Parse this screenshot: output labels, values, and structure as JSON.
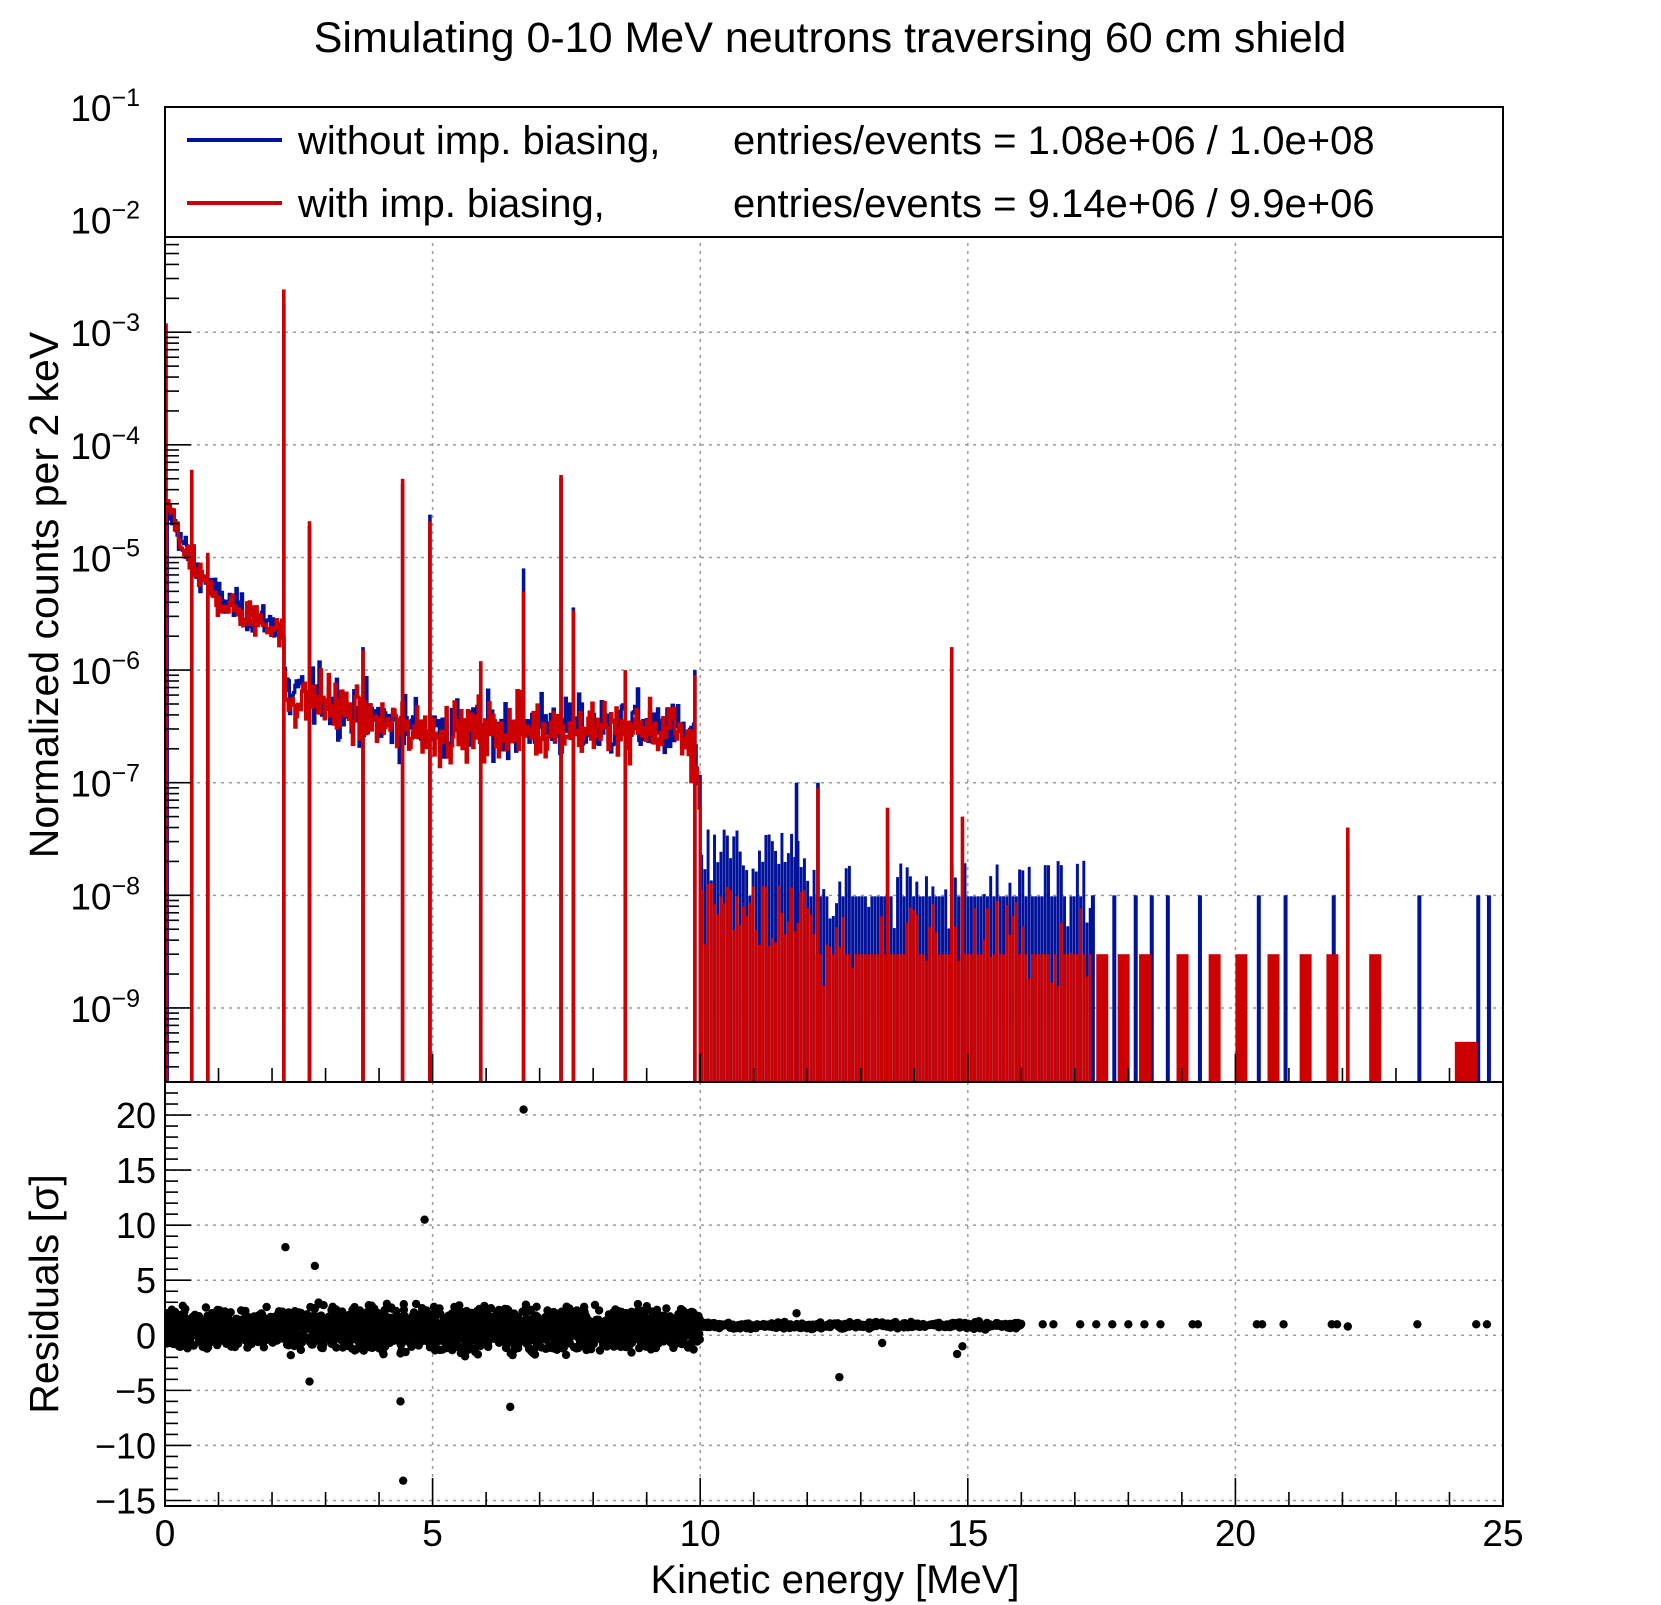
{
  "chart_data": [
    {
      "type": "line",
      "subtype": "step-histogram",
      "title": "Simulating 0-10 MeV neutrons traversing 60 cm shield",
      "xlabel": "Kinetic energy [MeV]",
      "ylabel": "Normalized counts per 2 keV",
      "yscale": "log",
      "xlim": [
        0,
        25
      ],
      "ylim": [
        2.2e-10,
        0.1
      ],
      "grid": true,
      "legend_position": "top",
      "x_tick_labels": [
        "0",
        "5",
        "10",
        "15",
        "20",
        "25"
      ],
      "y_tick_labels": [
        {
          "base": "10",
          "exp": "−1",
          "value": 0.1
        },
        {
          "base": "10",
          "exp": "−2",
          "value": 0.01
        },
        {
          "base": "10",
          "exp": "−3",
          "value": 0.001
        },
        {
          "base": "10",
          "exp": "−4",
          "value": 0.0001
        },
        {
          "base": "10",
          "exp": "−5",
          "value": 1e-05
        },
        {
          "base": "10",
          "exp": "−6",
          "value": 1e-06
        },
        {
          "base": "10",
          "exp": "−7",
          "value": 1e-07
        },
        {
          "base": "10",
          "exp": "−8",
          "value": 1e-08
        },
        {
          "base": "10",
          "exp": "−9",
          "value": 1e-09
        }
      ],
      "series": [
        {
          "name": "without imp. biasing,",
          "stats": "entries/events = 1.08e+06 / 1.0e+08",
          "color": "#00129a",
          "continuum": [
            [
              0.0,
              3e-06
            ],
            [
              0.02,
              2e-05
            ],
            [
              0.1,
              2.6e-05
            ],
            [
              0.2,
              1.9e-05
            ],
            [
              0.35,
              1.3e-05
            ],
            [
              0.5,
              9e-06
            ],
            [
              0.7,
              6.5e-06
            ],
            [
              1.0,
              4.5e-06
            ],
            [
              1.5,
              3.2e-06
            ],
            [
              2.0,
              2.6e-06
            ],
            [
              2.2,
              2.3e-06
            ],
            [
              2.26,
              6e-07
            ],
            [
              3.0,
              5.5e-07
            ],
            [
              3.5,
              4.2e-07
            ],
            [
              4.0,
              3.4e-07
            ],
            [
              5.0,
              3e-07
            ],
            [
              6.0,
              2.9e-07
            ],
            [
              7.0,
              3.3e-07
            ],
            [
              8.0,
              3e-07
            ],
            [
              9.0,
              3.2e-07
            ],
            [
              9.5,
              3e-07
            ],
            [
              9.9,
              2.1e-07
            ],
            [
              10.0,
              8e-08
            ],
            [
              10.3,
              1.6e-08
            ],
            [
              12.0,
              1.1e-08
            ],
            [
              15.0,
              9e-09
            ],
            [
              17.0,
              7e-09
            ]
          ],
          "peaks": [
            [
              0.04,
              2.5e-05
            ],
            [
              0.5,
              5e-05
            ],
            [
              0.8,
              1e-05
            ],
            [
              2.22,
              0.0018
            ],
            [
              2.7,
              1.9e-05
            ],
            [
              3.7,
              1.6e-06
            ],
            [
              4.44,
              4.5e-05
            ],
            [
              4.95,
              2.4e-05
            ],
            [
              5.9,
              1.1e-06
            ],
            [
              6.7,
              8e-06
            ],
            [
              7.4,
              5.1e-05
            ],
            [
              7.63,
              3.6e-06
            ],
            [
              8.6,
              9e-07
            ],
            [
              9.9,
              1e-06
            ],
            [
              11.8,
              1e-07
            ],
            [
              12.2,
              1e-07
            ],
            [
              14.7,
              1.5e-06
            ],
            [
              22.1,
              2.5e-08
            ]
          ],
          "sparse_tail_bins": [
            [
              17.3,
              1e-08
            ],
            [
              17.7,
              1e-08
            ],
            [
              18.1,
              1e-08
            ],
            [
              18.4,
              1e-08
            ],
            [
              18.7,
              1e-08
            ],
            [
              19.3,
              1e-08
            ],
            [
              20.4,
              1e-08
            ],
            [
              20.9,
              1e-08
            ],
            [
              21.8,
              1e-08
            ],
            [
              23.4,
              1e-08
            ],
            [
              24.5,
              1e-08
            ],
            [
              24.7,
              1e-08
            ]
          ]
        },
        {
          "name": "with imp. biasing,",
          "stats": "entries/events = 9.14e+06 / 9.9e+06",
          "color": "#cc0000",
          "continuum": [
            [
              0.0,
              3e-06
            ],
            [
              0.02,
              2.9e-05
            ],
            [
              0.1,
              2.7e-05
            ],
            [
              0.2,
              1.8e-05
            ],
            [
              0.35,
              1.2e-05
            ],
            [
              0.5,
              8.5e-06
            ],
            [
              0.7,
              6e-06
            ],
            [
              1.0,
              4.2e-06
            ],
            [
              1.5,
              3e-06
            ],
            [
              2.0,
              2.5e-06
            ],
            [
              2.2,
              2.2e-06
            ],
            [
              2.26,
              5.5e-07
            ],
            [
              3.0,
              5.2e-07
            ],
            [
              3.5,
              4e-07
            ],
            [
              4.0,
              3.3e-07
            ],
            [
              5.0,
              2.9e-07
            ],
            [
              6.0,
              2.8e-07
            ],
            [
              7.0,
              3.1e-07
            ],
            [
              8.0,
              2.9e-07
            ],
            [
              9.0,
              3e-07
            ],
            [
              9.5,
              2.8e-07
            ],
            [
              9.9,
              2e-07
            ],
            [
              10.0,
              7e-08
            ],
            [
              10.3,
              1.2e-08
            ],
            [
              12.0,
              6e-09
            ],
            [
              15.0,
              4e-09
            ],
            [
              17.0,
              3e-09
            ]
          ],
          "peaks": [
            [
              0.02,
              0.0012
            ],
            [
              0.5,
              6e-05
            ],
            [
              0.8,
              1.1e-05
            ],
            [
              2.22,
              0.0024
            ],
            [
              2.7,
              2.1e-05
            ],
            [
              3.7,
              1.5e-06
            ],
            [
              4.44,
              5e-05
            ],
            [
              4.95,
              2.1e-05
            ],
            [
              5.9,
              1.2e-06
            ],
            [
              6.7,
              5e-06
            ],
            [
              7.4,
              5.4e-05
            ],
            [
              7.63,
              3.4e-06
            ],
            [
              8.6,
              1e-06
            ],
            [
              9.9,
              9e-07
            ],
            [
              12.2,
              9e-08
            ],
            [
              13.5,
              6e-08
            ],
            [
              14.7,
              1.6e-06
            ],
            [
              14.9,
              5e-08
            ],
            [
              22.1,
              4e-08
            ]
          ],
          "sparse_tail_bins": [
            [
              17.4,
              3e-09
            ],
            [
              17.8,
              3e-09
            ],
            [
              18.2,
              3e-09
            ],
            [
              18.9,
              3e-09
            ],
            [
              19.5,
              3e-09
            ],
            [
              20.0,
              3e-09
            ],
            [
              20.6,
              3e-09
            ],
            [
              21.2,
              3e-09
            ],
            [
              21.7,
              3e-09
            ],
            [
              22.5,
              3e-09
            ],
            [
              24.1,
              5e-10
            ],
            [
              24.3,
              5e-10
            ]
          ]
        }
      ]
    },
    {
      "type": "scatter",
      "xlabel": "Kinetic energy [MeV]",
      "ylabel": "Residuals [σ]",
      "xlim": [
        0,
        25
      ],
      "ylim": [
        -15.5,
        23
      ],
      "grid": true,
      "x_tick_labels": [
        "0",
        "5",
        "10",
        "15",
        "20",
        "25"
      ],
      "y_tick_labels": [
        {
          "label": "20",
          "value": 20
        },
        {
          "label": "15",
          "value": 15
        },
        {
          "label": "10",
          "value": 10
        },
        {
          "label": "5",
          "value": 5
        },
        {
          "label": "0",
          "value": 0
        },
        {
          "label": "−5",
          "value": -5
        },
        {
          "label": "−10",
          "value": -10
        },
        {
          "label": "−15",
          "value": -15
        }
      ],
      "marker_color": "#000000",
      "bulk_band": {
        "description": "dense cloud of residuals around 0",
        "regions": [
          {
            "x_range": [
              0,
              2.2
            ],
            "y_spread": 1.3
          },
          {
            "x_range": [
              2.2,
              10
            ],
            "y_spread": 1.5
          },
          {
            "x_range": [
              10,
              16
            ],
            "y_spread": 0.25
          }
        ]
      },
      "outliers": [
        [
          6.7,
          20.5
        ],
        [
          4.85,
          10.5
        ],
        [
          2.25,
          8.0
        ],
        [
          2.8,
          6.3
        ],
        [
          4.4,
          -6.0
        ],
        [
          6.45,
          -6.5
        ],
        [
          4.45,
          -13.2
        ],
        [
          12.6,
          -3.8
        ],
        [
          2.7,
          -4.2
        ],
        [
          14.8,
          -1.7
        ],
        [
          11.8,
          2.0
        ],
        [
          13.4,
          -0.7
        ],
        [
          14.9,
          -1.0
        ]
      ],
      "tail_points": [
        [
          16.4,
          1.0
        ],
        [
          16.6,
          1.0
        ],
        [
          17.1,
          1.0
        ],
        [
          17.4,
          1.0
        ],
        [
          17.7,
          1.0
        ],
        [
          18.0,
          1.0
        ],
        [
          18.3,
          1.0
        ],
        [
          18.6,
          1.0
        ],
        [
          19.2,
          1.0
        ],
        [
          19.3,
          1.0
        ],
        [
          20.4,
          1.0
        ],
        [
          20.5,
          1.0
        ],
        [
          20.9,
          1.0
        ],
        [
          21.8,
          1.0
        ],
        [
          21.9,
          1.0
        ],
        [
          22.1,
          0.8
        ],
        [
          23.4,
          1.0
        ],
        [
          24.5,
          1.0
        ],
        [
          24.7,
          1.0
        ]
      ]
    }
  ]
}
